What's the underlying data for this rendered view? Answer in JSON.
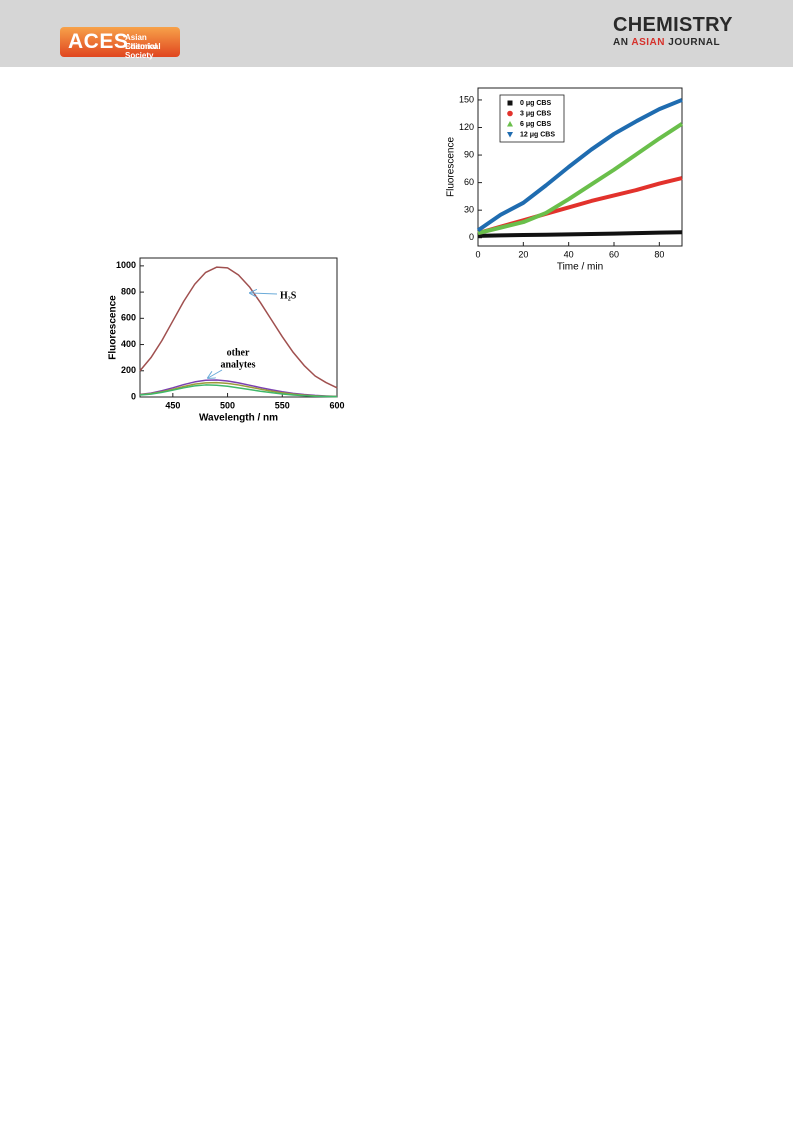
{
  "header": {
    "logo": "ACES",
    "society": [
      "Asian Chemical",
      "Editorial Society"
    ],
    "journal": "CHEMISTRY",
    "journal_subtitle": [
      "AN",
      "ASIAN",
      "JOURNAL"
    ]
  },
  "chart_data": [
    {
      "type": "line",
      "xlabel": "Wavelength / nm",
      "ylabel": "Fluorescence",
      "x": [
        420,
        430,
        440,
        450,
        460,
        470,
        480,
        490,
        500,
        510,
        520,
        530,
        540,
        550,
        560,
        570,
        580,
        590,
        600
      ],
      "series": [
        {
          "color": "#a0504f",
          "values": [
            200,
            300,
            430,
            580,
            730,
            860,
            950,
            990,
            985,
            930,
            840,
            720,
            590,
            460,
            340,
            240,
            160,
            110,
            70
          ]
        },
        {
          "color": "#7a3fb0",
          "values": [
            20,
            30,
            48,
            70,
            95,
            115,
            128,
            130,
            122,
            108,
            90,
            72,
            55,
            40,
            28,
            19,
            12,
            8,
            5
          ]
        },
        {
          "color": "#9c9a3a",
          "values": [
            18,
            26,
            40,
            58,
            80,
            98,
            108,
            110,
            104,
            92,
            76,
            60,
            45,
            32,
            22,
            14,
            9,
            6,
            4
          ]
        },
        {
          "color": "#3fb86a",
          "values": [
            15,
            22,
            35,
            52,
            70,
            85,
            92,
            90,
            82,
            70,
            57,
            44,
            33,
            23,
            15,
            10,
            6,
            4,
            3
          ]
        }
      ],
      "xlim": [
        420,
        600
      ],
      "xticks": [
        450,
        500,
        550,
        600
      ],
      "ylim": [
        0,
        1060
      ],
      "yticks": [
        0,
        200,
        400,
        600,
        800,
        1000
      ],
      "annotations": [
        "H₂S",
        "other",
        "analytes"
      ]
    },
    {
      "type": "line",
      "xlabel": "Time / min",
      "ylabel": "Fluorescence",
      "x": [
        0,
        10,
        20,
        30,
        40,
        50,
        60,
        70,
        80,
        90
      ],
      "series": [
        {
          "name": "0 μg CBS",
          "color": "#111111",
          "marker": "square",
          "values": [
            2,
            2.5,
            3,
            3.3,
            3.7,
            4,
            4.5,
            5,
            5.5,
            6
          ]
        },
        {
          "name": "3 μg CBS",
          "color": "#e2322c",
          "marker": "circle",
          "values": [
            5,
            12,
            19,
            26,
            33,
            40,
            46,
            52,
            59,
            65
          ]
        },
        {
          "name": "6 μg CBS",
          "color": "#6abf4b",
          "marker": "triangle-up",
          "values": [
            5,
            11,
            17,
            27,
            42,
            58,
            74,
            91,
            108,
            124
          ]
        },
        {
          "name": "12 μg CBS",
          "color": "#1f6cb0",
          "marker": "triangle-down",
          "values": [
            8,
            25,
            38,
            57,
            77,
            96,
            113,
            127,
            140,
            150
          ]
        }
      ],
      "xlim": [
        0,
        90
      ],
      "xticks": [
        0,
        20,
        40,
        60,
        80
      ],
      "ylim": [
        -9,
        163
      ],
      "yticks": [
        0,
        30,
        60,
        90,
        120,
        150
      ],
      "legend": "upper left"
    }
  ]
}
